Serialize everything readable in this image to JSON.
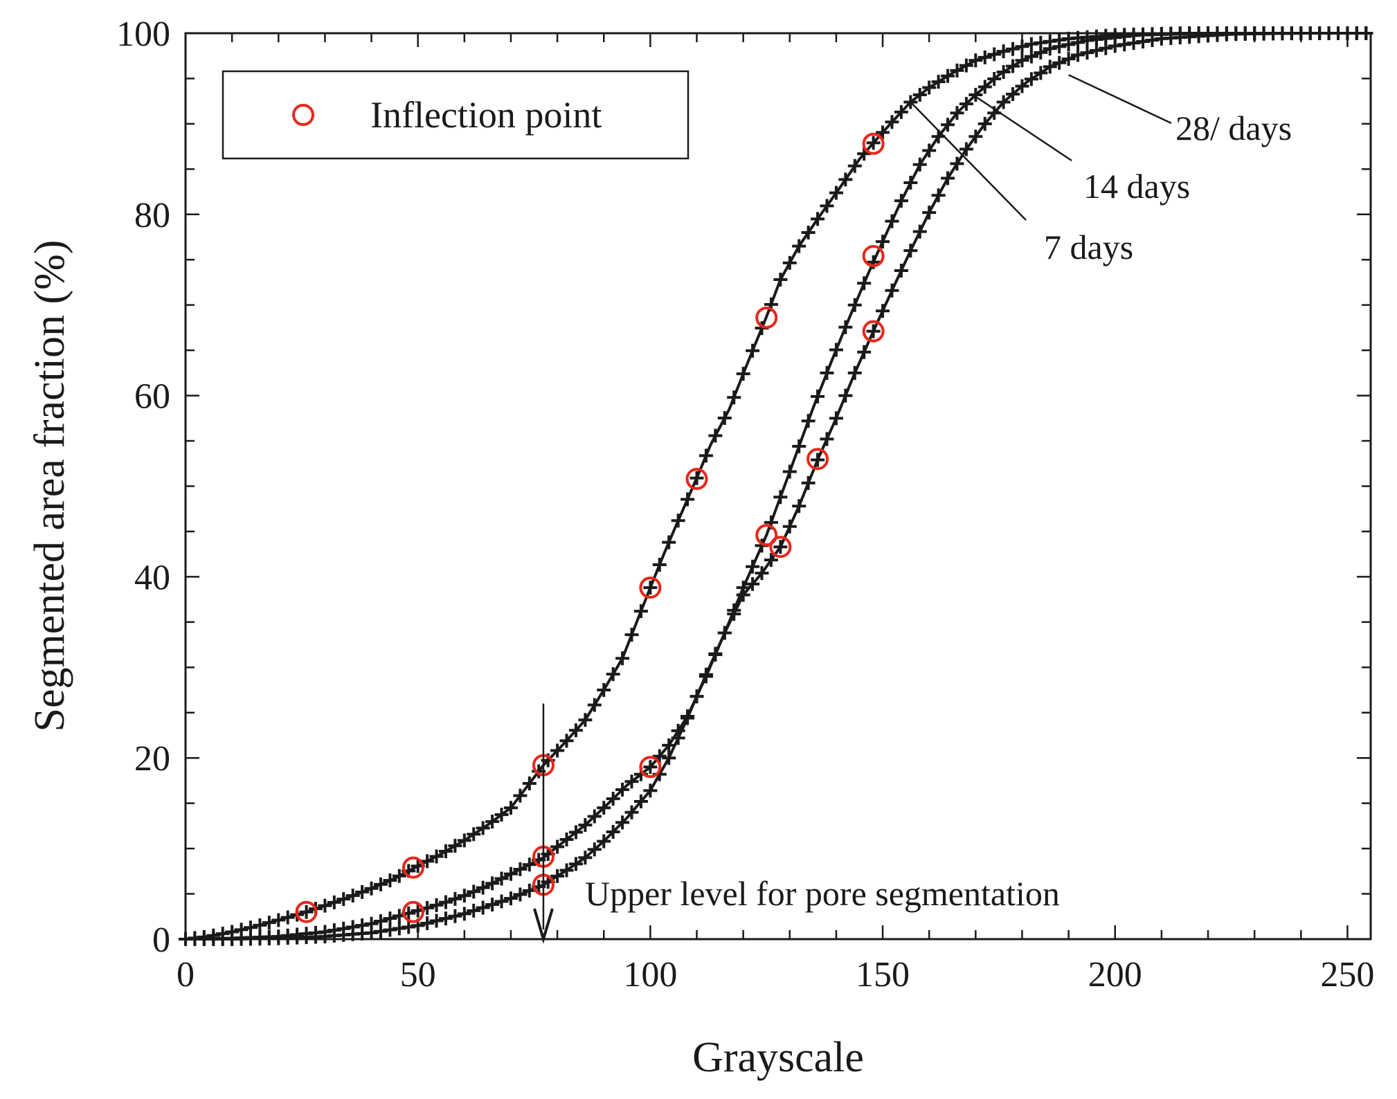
{
  "chart_data": {
    "type": "line",
    "title": "",
    "xlabel": "Grayscale",
    "ylabel": "Segmented area fraction (%)",
    "xlim": [
      0,
      255
    ],
    "ylim": [
      0,
      100
    ],
    "xticks": [
      0,
      50,
      100,
      150,
      200,
      250
    ],
    "yticks": [
      0,
      20,
      40,
      60,
      80,
      100
    ],
    "grid": false,
    "legend": {
      "position": "top-left",
      "entries": [
        "Inflection point"
      ]
    },
    "marker_color": "#e8271b",
    "line_color": "#1a1a1a",
    "series": [
      {
        "name": "28/ days",
        "curve": [
          [
            0,
            0
          ],
          [
            5,
            0.3
          ],
          [
            10,
            0.8
          ],
          [
            15,
            1.4
          ],
          [
            20,
            2.1
          ],
          [
            26,
            3
          ],
          [
            30,
            3.7
          ],
          [
            35,
            4.6
          ],
          [
            40,
            5.6
          ],
          [
            45,
            6.7
          ],
          [
            49,
            7.8
          ],
          [
            55,
            9.4
          ],
          [
            60,
            10.9
          ],
          [
            65,
            12.6
          ],
          [
            70,
            14.5
          ],
          [
            77,
            19.2
          ],
          [
            82,
            21.9
          ],
          [
            86,
            24.2
          ],
          [
            90,
            27.5
          ],
          [
            94,
            31.0
          ],
          [
            97,
            34.9
          ],
          [
            100,
            38.8
          ],
          [
            103,
            42.6
          ],
          [
            106,
            46.2
          ],
          [
            110,
            50.9
          ],
          [
            113,
            54.6
          ],
          [
            117,
            58.5
          ],
          [
            121,
            63.7
          ],
          [
            125,
            68.7
          ],
          [
            128,
            72.8
          ],
          [
            132,
            76.5
          ],
          [
            136,
            79.5
          ],
          [
            141,
            83.1
          ],
          [
            145,
            86.1
          ],
          [
            148,
            87.9
          ],
          [
            152,
            90.2
          ],
          [
            156,
            92.4
          ],
          [
            160,
            94.0
          ],
          [
            165,
            95.6
          ],
          [
            170,
            97.0
          ],
          [
            176,
            98.0
          ],
          [
            182,
            98.8
          ],
          [
            190,
            99.4
          ],
          [
            200,
            99.8
          ],
          [
            215,
            100
          ],
          [
            240,
            100
          ],
          [
            255,
            100
          ]
        ],
        "inflection_points": [
          [
            26,
            3
          ],
          [
            49,
            7.9
          ],
          [
            77,
            19.2
          ],
          [
            100,
            38.8
          ],
          [
            110,
            50.8
          ],
          [
            125,
            68.6
          ],
          [
            148,
            87.8
          ]
        ]
      },
      {
        "name": "14 days",
        "curve": [
          [
            0,
            0
          ],
          [
            10,
            0.1
          ],
          [
            20,
            0.3
          ],
          [
            30,
            0.8
          ],
          [
            40,
            1.7
          ],
          [
            49,
            3
          ],
          [
            55,
            3.9
          ],
          [
            60,
            4.8
          ],
          [
            65,
            5.9
          ],
          [
            70,
            7.2
          ],
          [
            77,
            9.0
          ],
          [
            82,
            11.0
          ],
          [
            86,
            12.6
          ],
          [
            90,
            14.5
          ],
          [
            95,
            17.0
          ],
          [
            100,
            19.0
          ],
          [
            104,
            21.4
          ],
          [
            108,
            24.6
          ],
          [
            112,
            29.0
          ],
          [
            116,
            33.8
          ],
          [
            120,
            38.8
          ],
          [
            125,
            44.6
          ],
          [
            128,
            48.8
          ],
          [
            131,
            53.0
          ],
          [
            135,
            58.6
          ],
          [
            139,
            63.8
          ],
          [
            143,
            68.8
          ],
          [
            147,
            73.6
          ],
          [
            150,
            77.0
          ],
          [
            154,
            81.5
          ],
          [
            158,
            85.5
          ],
          [
            162,
            88.6
          ],
          [
            166,
            91.2
          ],
          [
            170,
            93.2
          ],
          [
            175,
            95.4
          ],
          [
            180,
            97.0
          ],
          [
            186,
            98.3
          ],
          [
            194,
            99.2
          ],
          [
            205,
            99.8
          ],
          [
            220,
            100
          ],
          [
            255,
            100
          ]
        ],
        "inflection_points": [
          [
            49,
            3.0
          ],
          [
            77,
            9.1
          ],
          [
            100,
            19.0
          ],
          [
            125,
            44.6
          ],
          [
            148,
            75.4
          ]
        ]
      },
      {
        "name": "7 days",
        "curve": [
          [
            0,
            0
          ],
          [
            10,
            0
          ],
          [
            20,
            0.1
          ],
          [
            30,
            0.3
          ],
          [
            40,
            0.7
          ],
          [
            50,
            1.5
          ],
          [
            60,
            2.8
          ],
          [
            70,
            4.5
          ],
          [
            77,
            6.0
          ],
          [
            82,
            7.6
          ],
          [
            86,
            9.0
          ],
          [
            90,
            10.8
          ],
          [
            95,
            13.4
          ],
          [
            100,
            16.4
          ],
          [
            104,
            20.0
          ],
          [
            108,
            24.4
          ],
          [
            112,
            29.2
          ],
          [
            116,
            33.8
          ],
          [
            120,
            38.0
          ],
          [
            124,
            40.4
          ],
          [
            128,
            43.3
          ],
          [
            132,
            47.8
          ],
          [
            136,
            52.9
          ],
          [
            140,
            57.5
          ],
          [
            144,
            62.5
          ],
          [
            148,
            67.1
          ],
          [
            152,
            71.6
          ],
          [
            156,
            76.0
          ],
          [
            160,
            80.2
          ],
          [
            164,
            84.0
          ],
          [
            168,
            87.2
          ],
          [
            172,
            90.0
          ],
          [
            176,
            92.4
          ],
          [
            181,
            94.6
          ],
          [
            186,
            96.3
          ],
          [
            192,
            97.6
          ],
          [
            200,
            98.6
          ],
          [
            210,
            99.4
          ],
          [
            225,
            99.9
          ],
          [
            240,
            100
          ],
          [
            255,
            100
          ]
        ],
        "inflection_points": [
          [
            77,
            6.0
          ],
          [
            128,
            43.3
          ],
          [
            136,
            53.0
          ],
          [
            148,
            67.1
          ]
        ]
      }
    ],
    "annotations": [
      {
        "text": "28/ days",
        "points_to": [
          190,
          95.4
        ]
      },
      {
        "text": "14 days",
        "points_to": [
          170,
          93.0
        ]
      },
      {
        "text": "7 days",
        "points_to": [
          156,
          92.4
        ]
      },
      {
        "text": "Upper level for pore segmentation",
        "arrow_x": 77,
        "arrow_from": 26,
        "arrow_to": 0
      }
    ]
  }
}
